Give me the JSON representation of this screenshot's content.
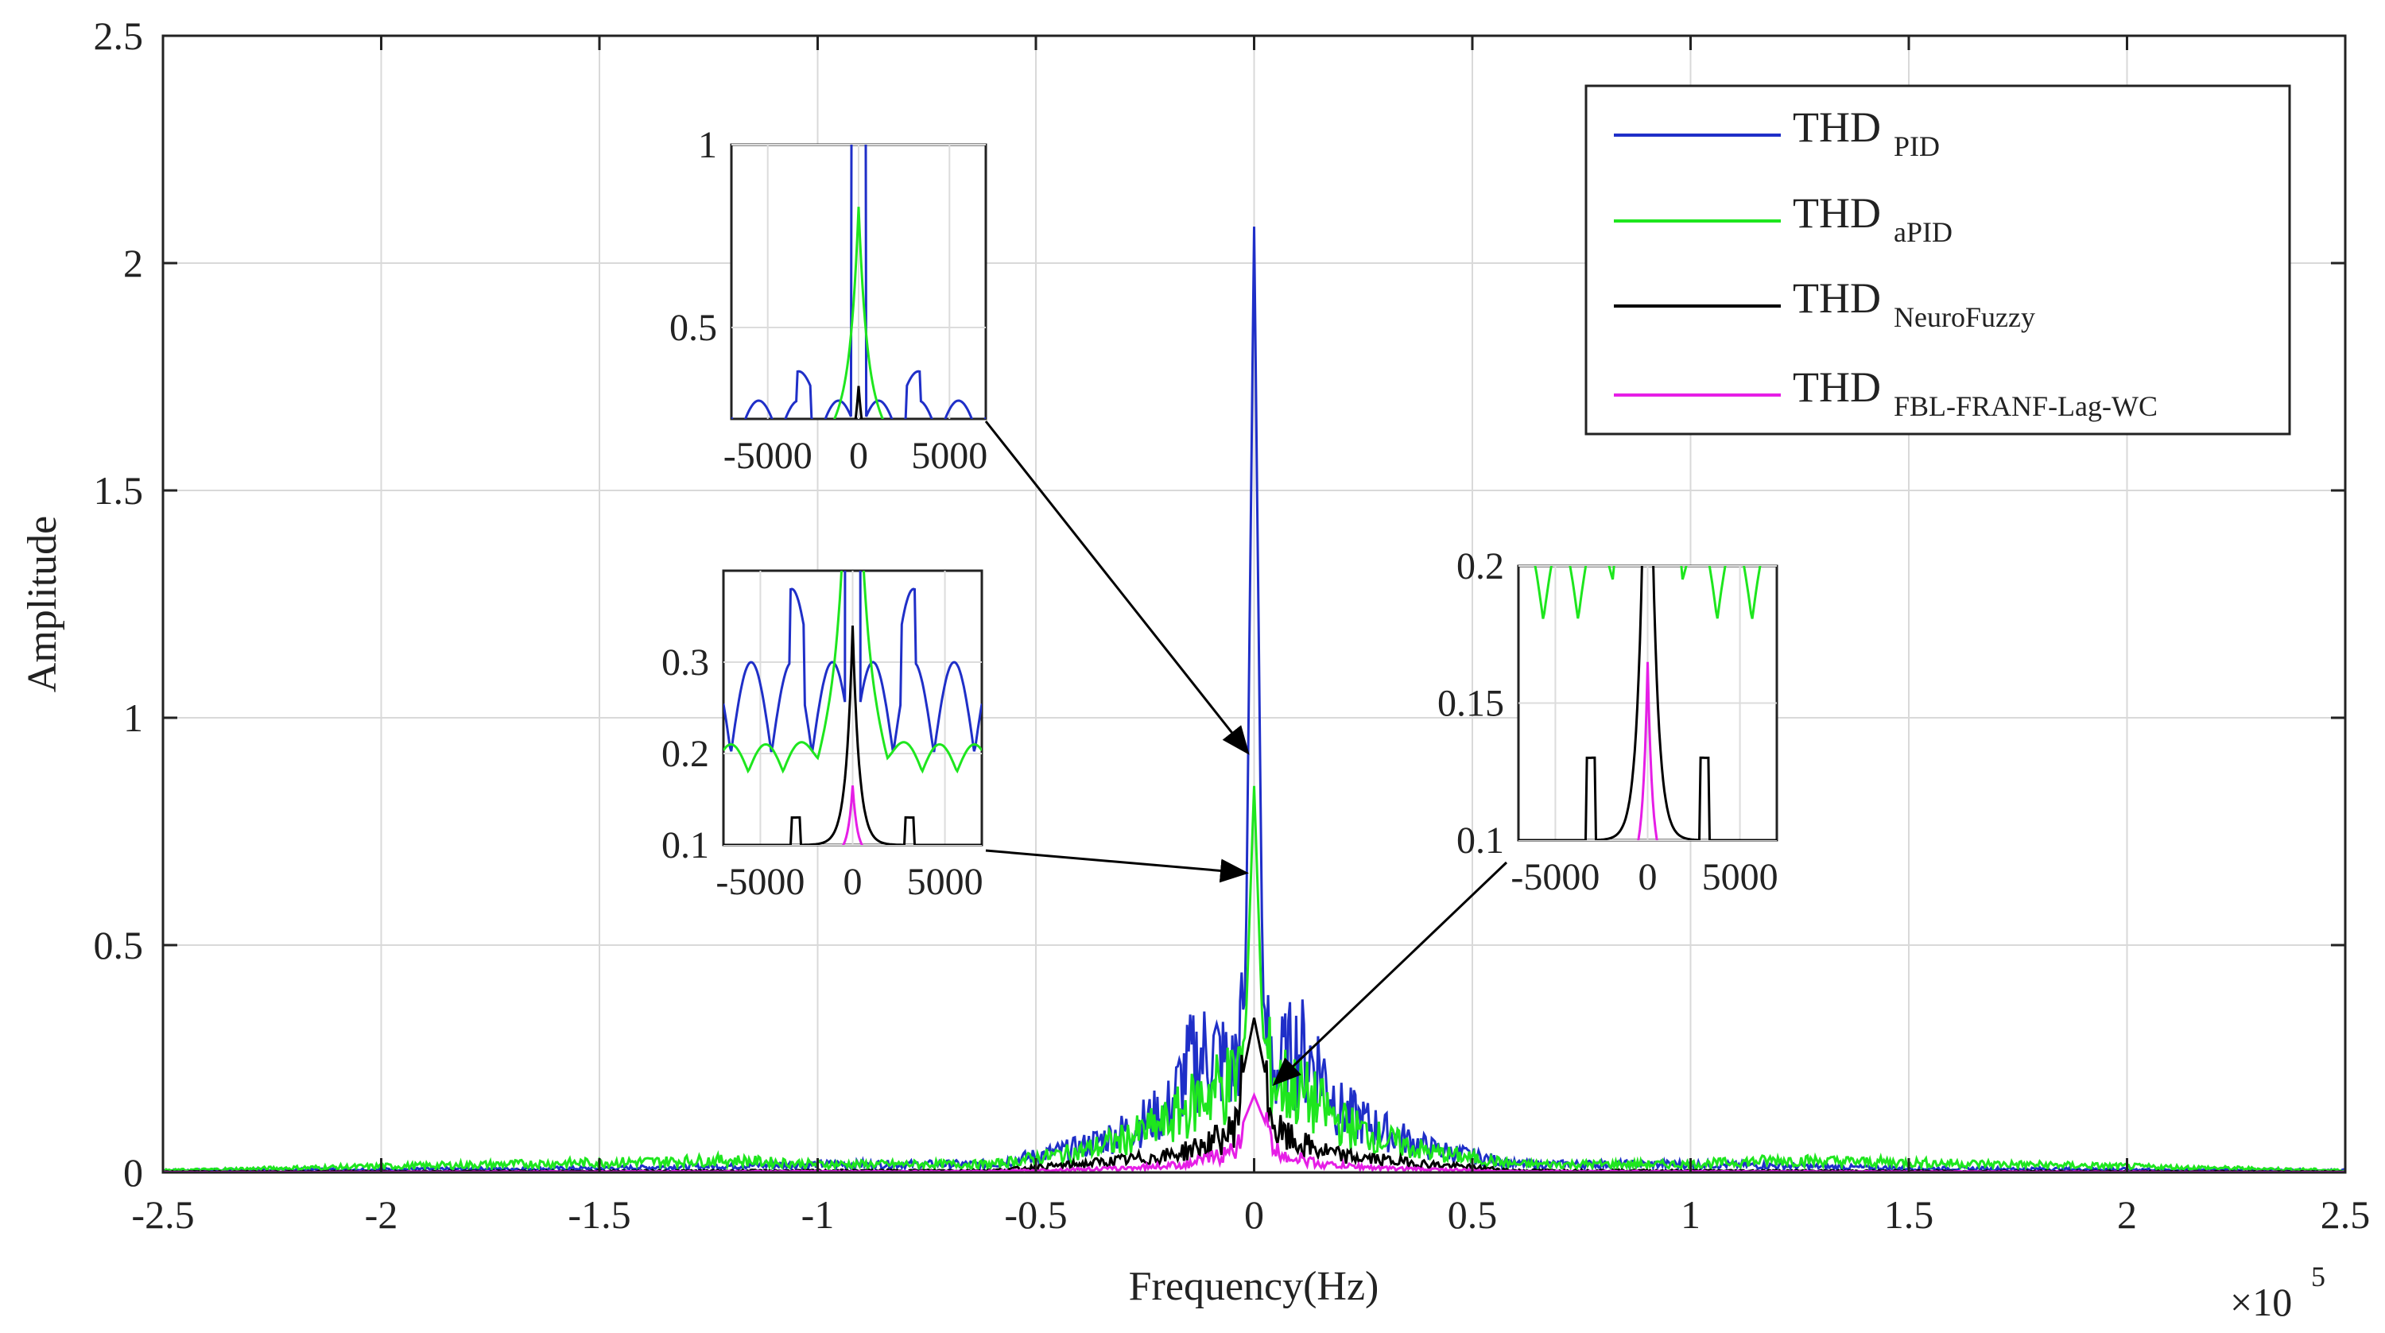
{
  "chart_data": {
    "type": "line",
    "title": "",
    "xlabel": "Frequency(Hz)",
    "ylabel": "Amplitude",
    "x_multiplier": "×10",
    "x_multiplier_exp": "5",
    "xlim": [
      -2.5,
      2.5
    ],
    "ylim": [
      0,
      2.5
    ],
    "grid": true,
    "xticks": [
      "-2.5",
      "-2",
      "-1.5",
      "-1",
      "-0.5",
      "0",
      "0.5",
      "1",
      "1.5",
      "2",
      "2.5"
    ],
    "yticks": [
      "0",
      "0.5",
      "1",
      "1.5",
      "2",
      "2.5"
    ],
    "legend": {
      "position": "top-right",
      "entries": [
        {
          "base": "THD",
          "sub": "PID",
          "color": "#1f2fc8"
        },
        {
          "base": "THD",
          "sub": "aPID",
          "color": "#1ee61e"
        },
        {
          "base": "THD",
          "sub": "NeuroFuzzy",
          "color": "#000000"
        },
        {
          "base": "THD",
          "sub": "FBL-FRANF-Lag-WC",
          "color": "#e61ee6"
        }
      ]
    },
    "series": [
      {
        "name": "THD_PID",
        "color": "#1f2fc8",
        "x": [
          -2.5,
          -1.5,
          -1.0,
          -0.6,
          -0.4,
          -0.3,
          -0.2,
          -0.15,
          -0.1,
          -0.05,
          -0.02,
          0,
          0.02,
          0.05,
          0.1,
          0.15,
          0.2,
          0.3,
          0.4,
          0.6,
          1.0,
          1.5,
          2.5
        ],
        "y": [
          0.005,
          0.01,
          0.02,
          0.02,
          0.06,
          0.1,
          0.15,
          0.26,
          0.3,
          0.25,
          0.38,
          2.08,
          0.38,
          0.25,
          0.3,
          0.26,
          0.15,
          0.1,
          0.06,
          0.02,
          0.02,
          0.01,
          0.005
        ]
      },
      {
        "name": "THD_aPID",
        "color": "#1ee61e",
        "x": [
          -2.5,
          -1.2,
          -1.0,
          -0.6,
          -0.4,
          -0.3,
          -0.2,
          -0.1,
          -0.05,
          -0.02,
          0,
          0.02,
          0.05,
          0.1,
          0.2,
          0.3,
          0.4,
          0.6,
          1.0,
          1.2,
          2.5
        ],
        "y": [
          0.005,
          0.03,
          0.02,
          0.02,
          0.05,
          0.08,
          0.12,
          0.2,
          0.22,
          0.3,
          0.85,
          0.3,
          0.22,
          0.2,
          0.12,
          0.08,
          0.05,
          0.02,
          0.02,
          0.03,
          0.005
        ]
      },
      {
        "name": "THD_NeuroFuzzy",
        "color": "#000000",
        "x": [
          -2.5,
          -0.6,
          -0.4,
          -0.2,
          -0.1,
          -0.05,
          0,
          0.05,
          0.1,
          0.2,
          0.4,
          0.6,
          2.5
        ],
        "y": [
          0.002,
          0.005,
          0.02,
          0.04,
          0.07,
          0.1,
          0.34,
          0.1,
          0.07,
          0.04,
          0.02,
          0.005,
          0.002
        ]
      },
      {
        "name": "THD_FBL-FRANF-Lag-WC",
        "color": "#e61ee6",
        "x": [
          -2.5,
          -0.6,
          -0.3,
          -0.15,
          -0.05,
          0,
          0.05,
          0.15,
          0.3,
          0.6,
          2.5
        ],
        "y": [
          0.001,
          0.003,
          0.01,
          0.02,
          0.05,
          0.17,
          0.05,
          0.02,
          0.01,
          0.003,
          0.001
        ]
      }
    ],
    "insets": [
      {
        "name": "inset-top",
        "xlim": [
          -7000,
          7000
        ],
        "ylim": [
          0.25,
          1.0
        ],
        "xticks": [
          "-5000",
          "0",
          "5000"
        ],
        "yticks": [
          "0.5",
          "1"
        ],
        "points_to": {
          "x": 0,
          "y": 0.9
        }
      },
      {
        "name": "inset-middle",
        "xlim": [
          -7000,
          7000
        ],
        "ylim": [
          0.1,
          0.4
        ],
        "xticks": [
          "-5000",
          "0",
          "5000"
        ],
        "yticks": [
          "0.1",
          "0.2",
          "0.3"
        ],
        "points_to": {
          "x": 0,
          "y": 0.65
        }
      },
      {
        "name": "inset-right",
        "xlim": [
          -7000,
          7000
        ],
        "ylim": [
          0.1,
          0.2
        ],
        "xticks": [
          "-5000",
          "0",
          "5000"
        ],
        "yticks": [
          "0.1",
          "0.15",
          "0.2"
        ],
        "points_to": {
          "x": 0.05,
          "y": 0.2
        }
      }
    ]
  }
}
